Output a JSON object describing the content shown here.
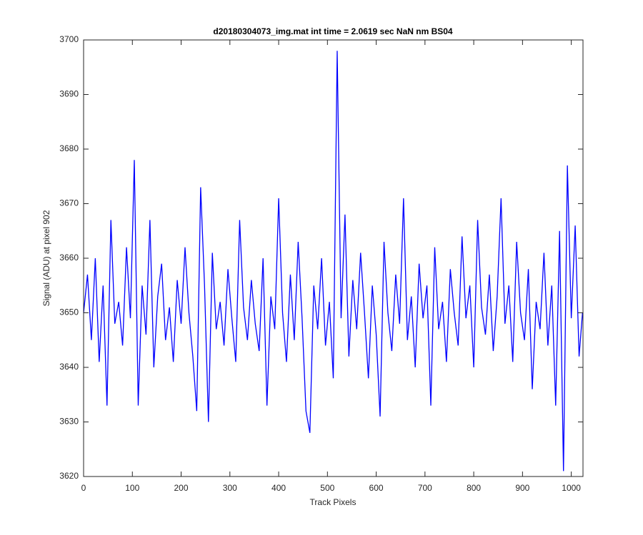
{
  "chart_data": {
    "type": "line",
    "title": "d20180304073_img.mat int time = 2.0619 sec  NaN nm BS04",
    "xlabel": "Track Pixels",
    "ylabel": "Signal (ADU) at pixel 902",
    "x": [
      0,
      8,
      16,
      24,
      32,
      40,
      48,
      56,
      64,
      72,
      80,
      88,
      96,
      104,
      112,
      120,
      128,
      136,
      144,
      152,
      160,
      168,
      176,
      184,
      192,
      200,
      208,
      216,
      224,
      232,
      240,
      248,
      256,
      264,
      272,
      280,
      288,
      296,
      304,
      312,
      320,
      328,
      336,
      344,
      352,
      360,
      368,
      376,
      384,
      392,
      400,
      408,
      416,
      424,
      432,
      440,
      448,
      456,
      464,
      472,
      480,
      488,
      496,
      504,
      512,
      520,
      528,
      536,
      544,
      552,
      560,
      568,
      576,
      584,
      592,
      600,
      608,
      616,
      624,
      632,
      640,
      648,
      656,
      664,
      672,
      680,
      688,
      696,
      704,
      712,
      720,
      728,
      736,
      744,
      752,
      760,
      768,
      776,
      784,
      792,
      800,
      808,
      816,
      824,
      832,
      840,
      848,
      856,
      864,
      872,
      880,
      888,
      896,
      904,
      912,
      920,
      928,
      936,
      944,
      952,
      960,
      968,
      976,
      984,
      992,
      1000,
      1008,
      1016,
      1023
    ],
    "values": [
      3650,
      3657,
      3645,
      3660,
      3641,
      3655,
      3633,
      3667,
      3648,
      3652,
      3644,
      3662,
      3649,
      3678,
      3633,
      3655,
      3646,
      3667,
      3640,
      3653,
      3659,
      3645,
      3651,
      3641,
      3656,
      3648,
      3662,
      3650,
      3642,
      3632,
      3673,
      3655,
      3630,
      3661,
      3647,
      3652,
      3644,
      3658,
      3649,
      3641,
      3667,
      3651,
      3645,
      3656,
      3648,
      3643,
      3660,
      3633,
      3653,
      3647,
      3671,
      3650,
      3641,
      3657,
      3645,
      3663,
      3649,
      3632,
      3628,
      3655,
      3647,
      3660,
      3644,
      3652,
      3638,
      3698,
      3649,
      3668,
      3642,
      3656,
      3647,
      3661,
      3650,
      3638,
      3655,
      3646,
      3631,
      3663,
      3650,
      3643,
      3657,
      3648,
      3671,
      3645,
      3653,
      3640,
      3659,
      3649,
      3655,
      3633,
      3662,
      3647,
      3652,
      3641,
      3658,
      3650,
      3644,
      3664,
      3649,
      3655,
      3640,
      3667,
      3651,
      3646,
      3657,
      3643,
      3653,
      3671,
      3648,
      3655,
      3641,
      3663,
      3650,
      3645,
      3658,
      3636,
      3652,
      3647,
      3661,
      3644,
      3655,
      3633,
      3665,
      3621,
      3677,
      3649,
      3666,
      3642,
      3650
    ],
    "color": "#0000ff",
    "xlim": [
      0,
      1024
    ],
    "ylim": [
      3620,
      3700
    ],
    "xticks": [
      0,
      100,
      200,
      300,
      400,
      500,
      600,
      700,
      800,
      900,
      1000
    ],
    "yticks": [
      3620,
      3630,
      3640,
      3650,
      3660,
      3670,
      3680,
      3690,
      3700
    ]
  }
}
